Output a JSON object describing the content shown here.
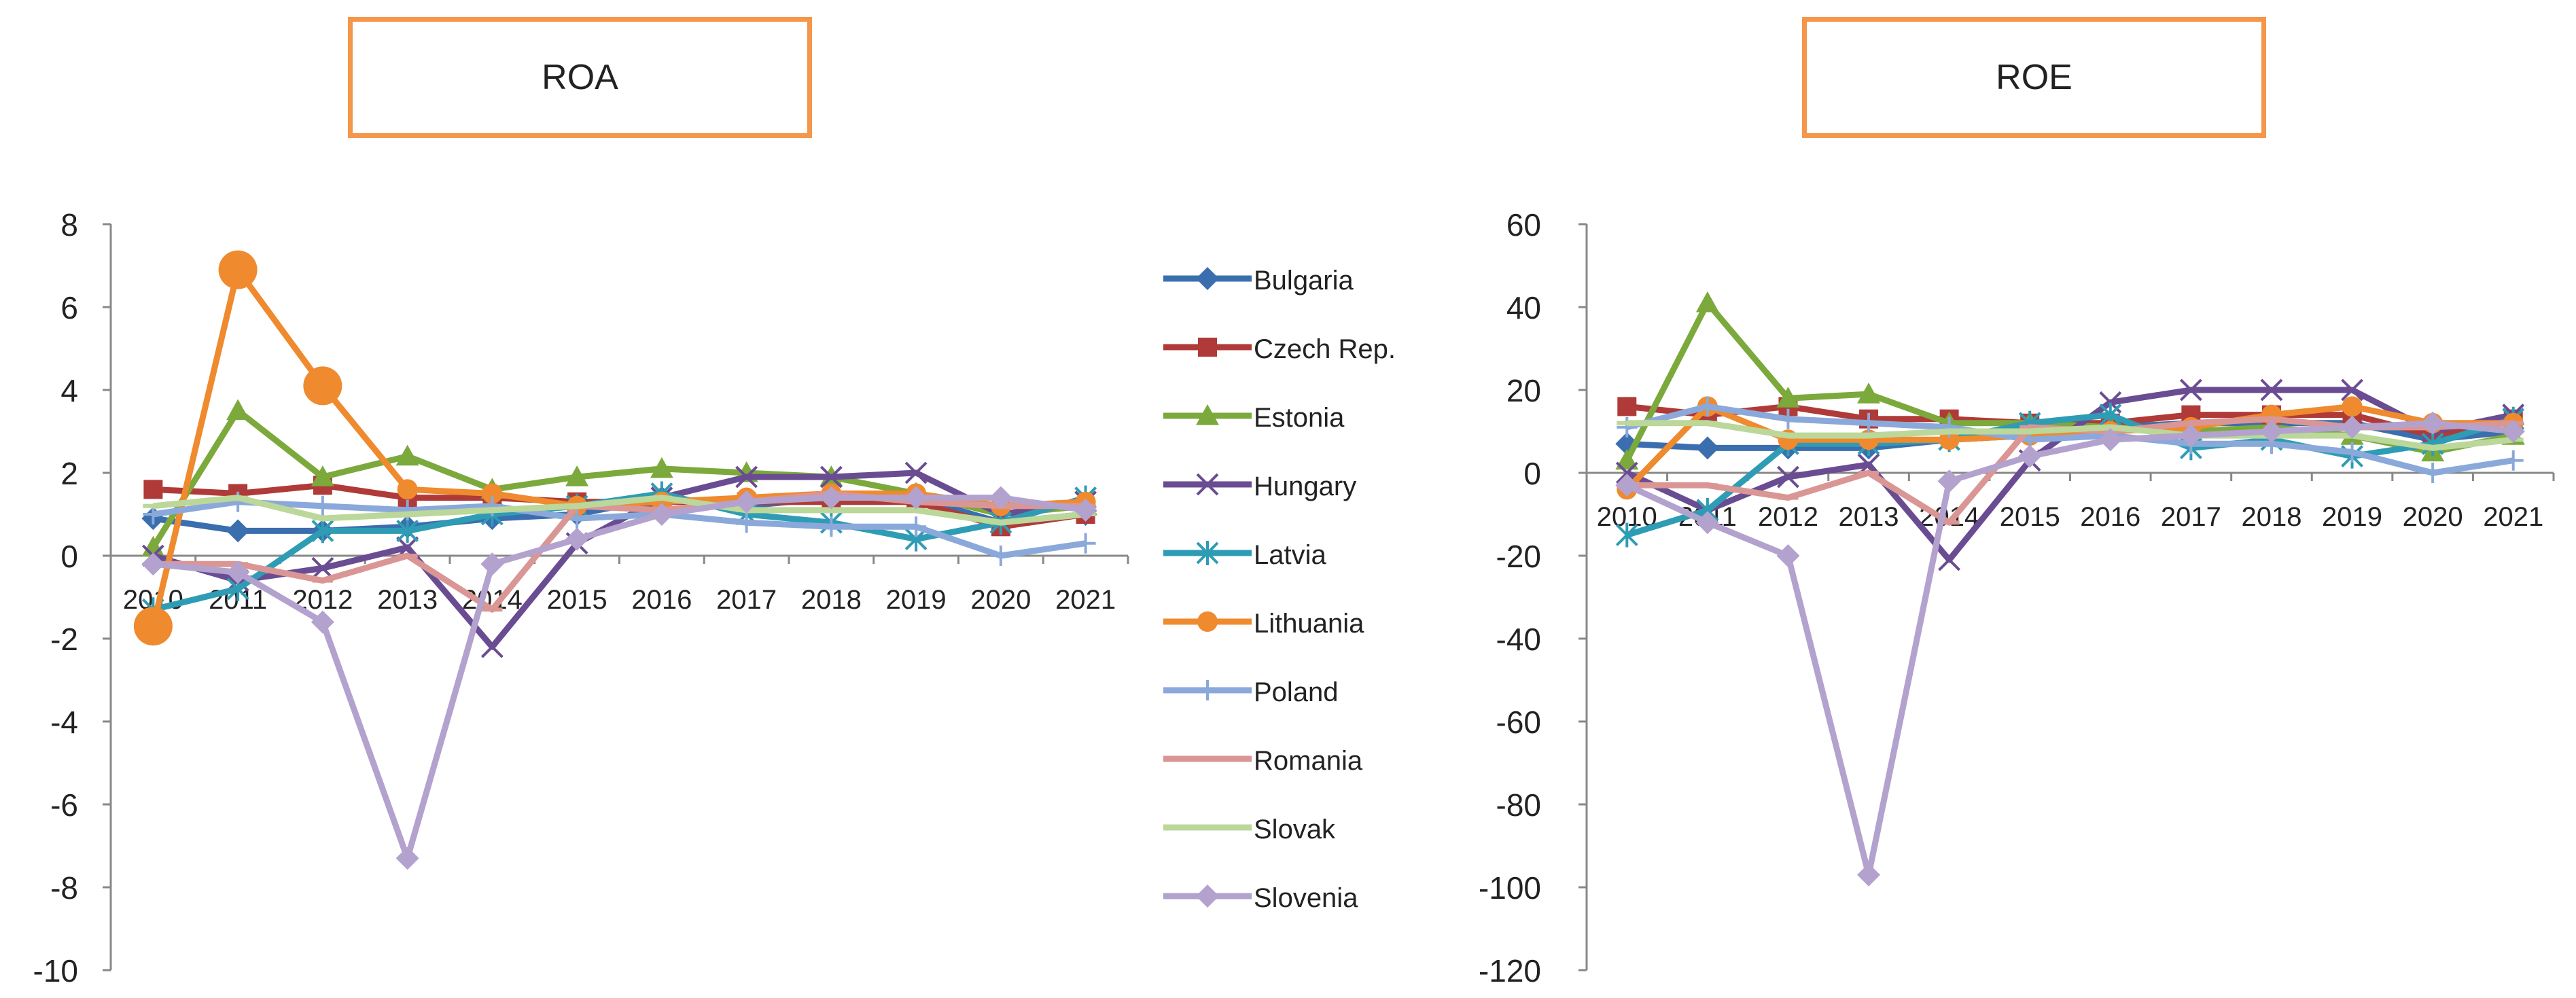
{
  "colors": {
    "Bulgaria": "#3A6EAE",
    "Czech Rep.": "#B03A37",
    "Estonia": "#7BA93C",
    "Hungary": "#6A4C92",
    "Latvia": "#2E9CB4",
    "Lithuania": "#EF8A2E",
    "Poland": "#8AA9DA",
    "Romania": "#DA9694",
    "Slovak": "#BBD79A",
    "Slovenia": "#B3A2CE"
  },
  "legend": [
    "Bulgaria",
    "Czech Rep.",
    "Estonia",
    "Hungary",
    "Latvia",
    "Lithuania",
    "Poland",
    "Romania",
    "Slovak",
    "Slovenia"
  ],
  "chart_data": [
    {
      "type": "line",
      "title": "ROA",
      "categories": [
        "2010",
        "2011",
        "2012",
        "2013",
        "2014",
        "2015",
        "2016",
        "2017",
        "2018",
        "2019",
        "2020",
        "2021"
      ],
      "ylim": [
        -10,
        8
      ],
      "yticks": [
        "8",
        "6",
        "4",
        "2",
        "0",
        "-2",
        "-4",
        "-6",
        "-8",
        "-10"
      ],
      "series": [
        {
          "name": "Bulgaria",
          "values": [
            0.9,
            0.6,
            0.6,
            0.7,
            0.9,
            1.0,
            1.4,
            1.2,
            1.4,
            1.4,
            0.8,
            1.0
          ]
        },
        {
          "name": "Czech Rep.",
          "values": [
            1.6,
            1.5,
            1.7,
            1.4,
            1.4,
            1.3,
            1.3,
            1.3,
            1.3,
            1.3,
            0.7,
            1.0
          ]
        },
        {
          "name": "Estonia",
          "values": [
            0.2,
            3.5,
            1.9,
            2.4,
            1.6,
            1.9,
            2.1,
            2.0,
            1.9,
            1.5,
            1.0,
            1.2
          ]
        },
        {
          "name": "Hungary",
          "values": [
            0.0,
            -0.6,
            -0.3,
            0.2,
            -2.2,
            0.3,
            1.4,
            1.9,
            1.9,
            2.0,
            1.0,
            1.3
          ]
        },
        {
          "name": "Latvia",
          "values": [
            -1.3,
            -0.8,
            0.6,
            0.6,
            1.0,
            1.2,
            1.5,
            1.0,
            0.8,
            0.4,
            0.8,
            1.4
          ]
        },
        {
          "name": "Lithuania",
          "values": [
            -1.7,
            6.9,
            4.1,
            1.6,
            1.5,
            1.2,
            1.3,
            1.4,
            1.5,
            1.5,
            1.2,
            1.3
          ]
        },
        {
          "name": "Poland",
          "values": [
            1.0,
            1.3,
            1.2,
            1.1,
            1.2,
            0.9,
            1.0,
            0.8,
            0.7,
            0.7,
            0.0,
            0.3
          ]
        },
        {
          "name": "Romania",
          "values": [
            -0.2,
            -0.2,
            -0.6,
            0.0,
            -1.3,
            1.2,
            1.1,
            1.3,
            1.5,
            1.3,
            1.2,
            1.2
          ]
        },
        {
          "name": "Slovak",
          "values": [
            1.2,
            1.4,
            0.9,
            1.0,
            1.1,
            1.2,
            1.4,
            1.1,
            1.1,
            1.1,
            0.8,
            1.0
          ]
        },
        {
          "name": "Slovenia",
          "values": [
            -0.2,
            -0.4,
            -1.6,
            -7.3,
            -0.2,
            0.4,
            1.0,
            1.3,
            1.4,
            1.4,
            1.4,
            1.1
          ]
        }
      ]
    },
    {
      "type": "line",
      "title": "ROE",
      "categories": [
        "2010",
        "2011",
        "2012",
        "2013",
        "2014",
        "2015",
        "2016",
        "2017",
        "2018",
        "2019",
        "2020",
        "2021"
      ],
      "ylim": [
        -120,
        60
      ],
      "yticks": [
        "60",
        "40",
        "20",
        "0",
        "-20",
        "-40",
        "-60",
        "-80",
        "-100",
        "-120"
      ],
      "series": [
        {
          "name": "Bulgaria",
          "values": [
            7,
            6,
            6,
            6,
            8,
            9,
            11,
            12,
            12,
            12,
            8,
            10
          ]
        },
        {
          "name": "Czech Rep.",
          "values": [
            16,
            14,
            16,
            13,
            13,
            12,
            12,
            14,
            14,
            14,
            9,
            13
          ]
        },
        {
          "name": "Estonia",
          "values": [
            3,
            41,
            18,
            19,
            12,
            12,
            11,
            10,
            11,
            9,
            5,
            9
          ]
        },
        {
          "name": "Hungary",
          "values": [
            0,
            -9,
            -1,
            2,
            -21,
            3,
            17,
            20,
            20,
            20,
            10,
            14
          ]
        },
        {
          "name": "Latvia",
          "values": [
            -15,
            -9,
            7,
            7,
            8,
            12,
            14,
            6,
            8,
            4,
            7,
            13
          ]
        },
        {
          "name": "Lithuania",
          "values": [
            -4,
            16,
            8,
            8,
            8,
            9,
            10,
            11,
            14,
            16,
            12,
            12
          ]
        },
        {
          "name": "Poland",
          "values": [
            11,
            16,
            13,
            12,
            11,
            8,
            9,
            7,
            7,
            5,
            0,
            3
          ]
        },
        {
          "name": "Romania",
          "values": [
            -3,
            -3,
            -6,
            0,
            -12,
            11,
            10,
            12,
            13,
            11,
            11,
            12
          ]
        },
        {
          "name": "Slovak",
          "values": [
            12,
            12,
            9,
            9,
            10,
            10,
            11,
            9,
            9,
            9,
            6,
            8
          ]
        },
        {
          "name": "Slovenia",
          "values": [
            -3,
            -12,
            -20,
            -97,
            -2,
            4,
            8,
            9,
            10,
            11,
            12,
            10
          ]
        }
      ]
    }
  ]
}
